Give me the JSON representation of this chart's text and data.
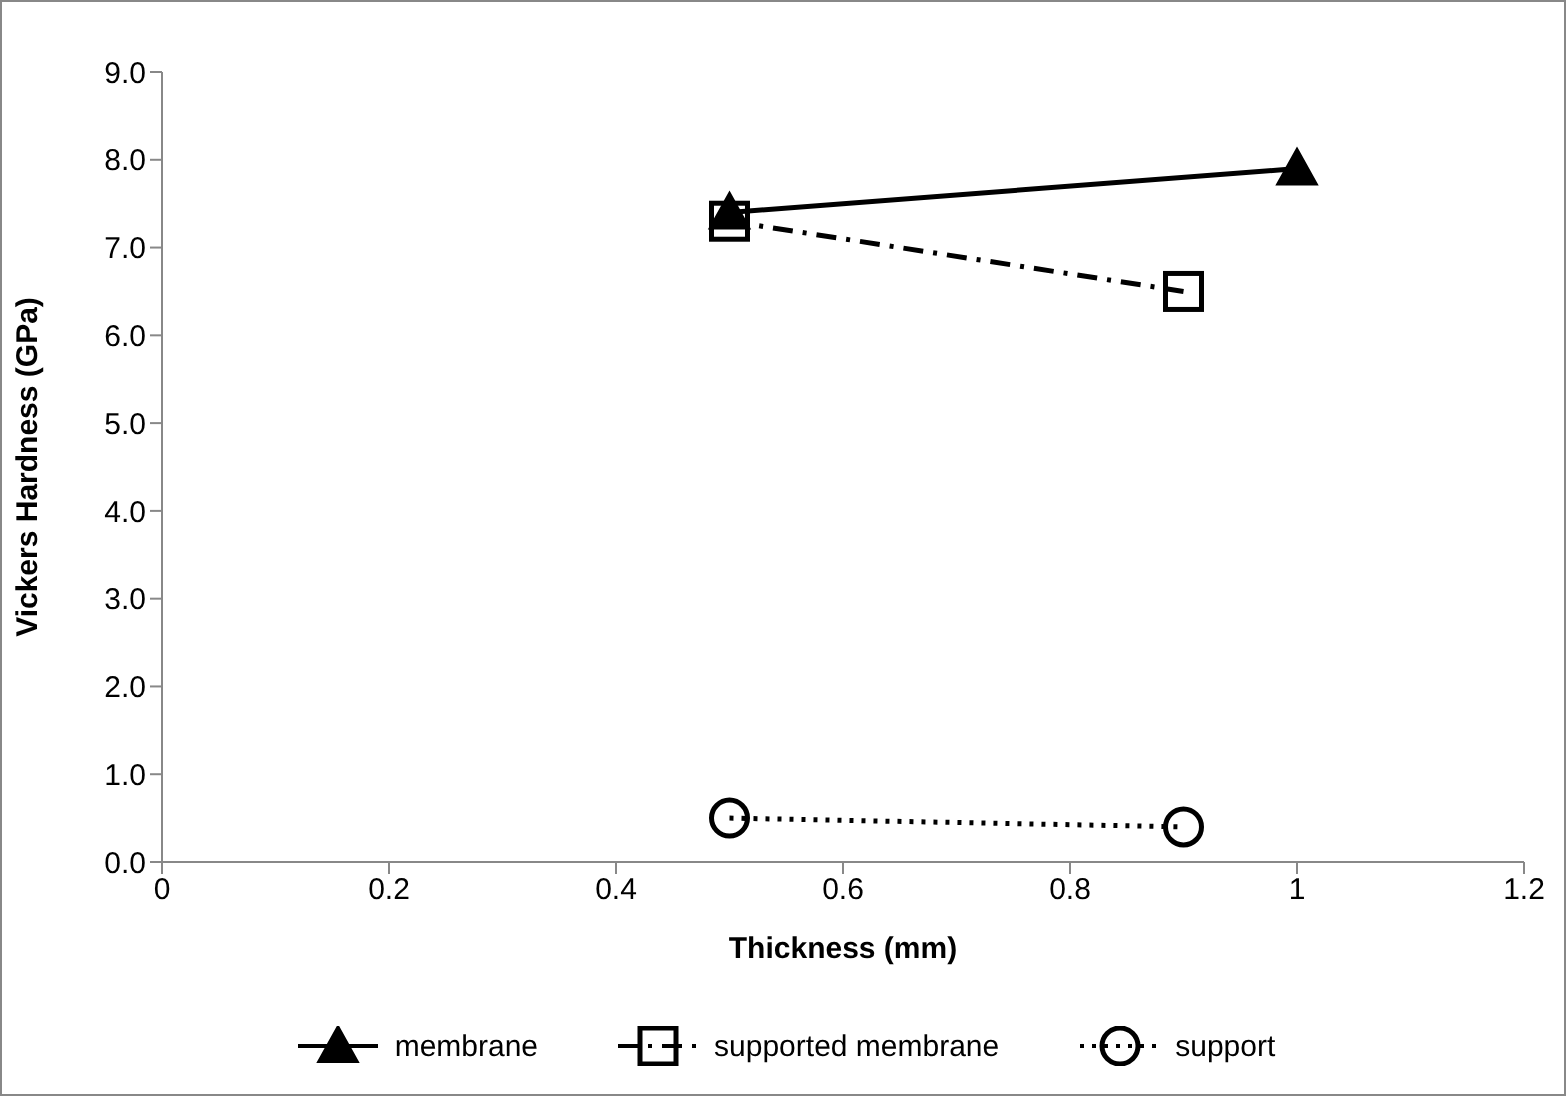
{
  "chart_data": {
    "type": "line",
    "xlabel": "Thickness (mm)",
    "ylabel": "Vickers Hardness (GPa)",
    "xlim": [
      0,
      1.2
    ],
    "xticks": [
      0,
      0.2,
      0.4,
      0.6,
      0.8,
      1,
      1.2
    ],
    "ylim": [
      0,
      9
    ],
    "yticks": [
      {
        "value": 0,
        "label": "0.0"
      },
      {
        "value": 1,
        "label": "1.0"
      },
      {
        "value": 2,
        "label": "2.0"
      },
      {
        "value": 3,
        "label": "3.0"
      },
      {
        "value": 4,
        "label": "4.0"
      },
      {
        "value": 5,
        "label": "5.0"
      },
      {
        "value": 6,
        "label": "6.0"
      },
      {
        "value": 7,
        "label": "7.0"
      },
      {
        "value": 8,
        "label": "8.0"
      },
      {
        "value": 9,
        "label": "9.0"
      }
    ],
    "legend": "bottom",
    "series": [
      {
        "name": "membrane",
        "color": "#000000",
        "x": [
          0.5,
          1
        ],
        "values": [
          7.4,
          7.9
        ],
        "marker": "triangle",
        "line_style": "solid"
      },
      {
        "name": "supported membrane",
        "color": "#000000",
        "x": [
          0.5,
          0.9
        ],
        "values": [
          7.3,
          6.5
        ],
        "marker": "square",
        "line_style": "dashdot"
      },
      {
        "name": "support",
        "color": "#000000",
        "x": [
          0.5,
          0.9
        ],
        "values": [
          0.5,
          0.4
        ],
        "marker": "circle",
        "line_style": "dotted"
      }
    ]
  }
}
